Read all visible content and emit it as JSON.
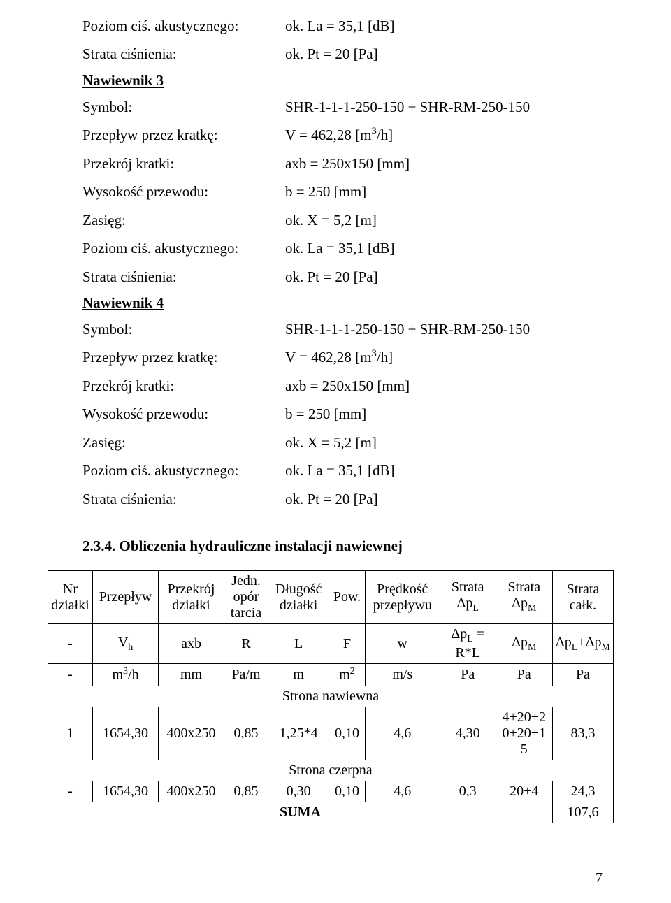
{
  "top_block": {
    "poziom_label": "Poziom ciś. akustycznego:",
    "poziom_value": "ok. La = 35,1 [dB]",
    "strata_label": "Strata ciśnienia:",
    "strata_value": "ok. Pt = 20 [Pa]"
  },
  "nawiewnik3": {
    "title": "Nawiewnik 3",
    "rows": [
      {
        "label": "Symbol:",
        "value": "SHR-1-1-1-250-150 + SHR-RM-250-150"
      },
      {
        "label": "Przepływ przez kratkę:",
        "value_html": " V = 462,28 [m<span class=\"sup\">3</span>/h]"
      },
      {
        "label": "Przekrój kratki:",
        "value": "axb = 250x150 [mm]"
      },
      {
        "label": "Wysokość przewodu:",
        "value": "b = 250 [mm]"
      },
      {
        "label": "Zasięg:",
        "value": "ok. X = 5,2 [m]"
      },
      {
        "label": "Poziom ciś. akustycznego:",
        "value": "ok. La = 35,1 [dB]"
      },
      {
        "label": "Strata ciśnienia:",
        "value": "ok. Pt = 20 [Pa]"
      }
    ]
  },
  "nawiewnik4": {
    "title": "Nawiewnik 4",
    "rows": [
      {
        "label": "Symbol:",
        "value": "SHR-1-1-1-250-150 + SHR-RM-250-150"
      },
      {
        "label": "Przepływ przez kratkę:",
        "value_html": " V = 462,28 [m<span class=\"sup\">3</span>/h]"
      },
      {
        "label": "Przekrój kratki:",
        "value": "axb = 250x150 [mm]"
      },
      {
        "label": "Wysokość przewodu:",
        "value": "b = 250 [mm]"
      },
      {
        "label": "Zasięg:",
        "value": "ok. X = 5,2 [m]"
      },
      {
        "label": "Poziom ciś. akustycznego:",
        "value": "ok. La = 35,1 [dB]"
      },
      {
        "label": "Strata ciśnienia:",
        "value": "ok. Pt = 20 [Pa]"
      }
    ]
  },
  "section_234": "2.3.4.  Obliczenia hydrauliczne instalacji nawiewnej",
  "table": {
    "head": [
      "Nr działki",
      "Przepływ",
      "Przekrój działki",
      "Jedn. opór tarcia",
      "Długość działki",
      "Pow.",
      "Prędkość przepływu",
      "Strata Δp<span class=\"sub\">L</span>",
      "Strata Δp<span class=\"sub\">M</span>",
      "Strata całk."
    ],
    "head2": [
      "-",
      "V<span class=\"sub\">h</span>",
      "axb",
      "R",
      "L",
      "F",
      "w",
      "Δp<span class=\"sub\">L</span> = R*L",
      "Δp<span class=\"sub\">M</span>",
      "Δp<span class=\"sub\">L</span>+Δp<span class=\"sub\">M</span>"
    ],
    "head3": [
      "-",
      "m<span class=\"sup\">3</span>/h",
      "mm",
      "Pa/m",
      "m",
      "m<span class=\"sup\">2</span>",
      "m/s",
      "Pa",
      "Pa",
      "Pa"
    ],
    "strona_naw": "Strona nawiewna",
    "row_naw": [
      "1",
      "1654,30",
      "400x250",
      "0,85",
      "1,25*4",
      "0,10",
      "4,6",
      "4,30",
      "4+20+2<br>0+20+1<br>5",
      "83,3"
    ],
    "strona_czerp": "Strona czerpna",
    "row_czerp": [
      "-",
      "1654,30",
      "400x250",
      "0,85",
      "0,30",
      "0,10",
      "4,6",
      "0,3",
      "20+4",
      "24,3"
    ],
    "suma_label": "SUMA",
    "suma_value": "107,6"
  },
  "page_number": "7"
}
